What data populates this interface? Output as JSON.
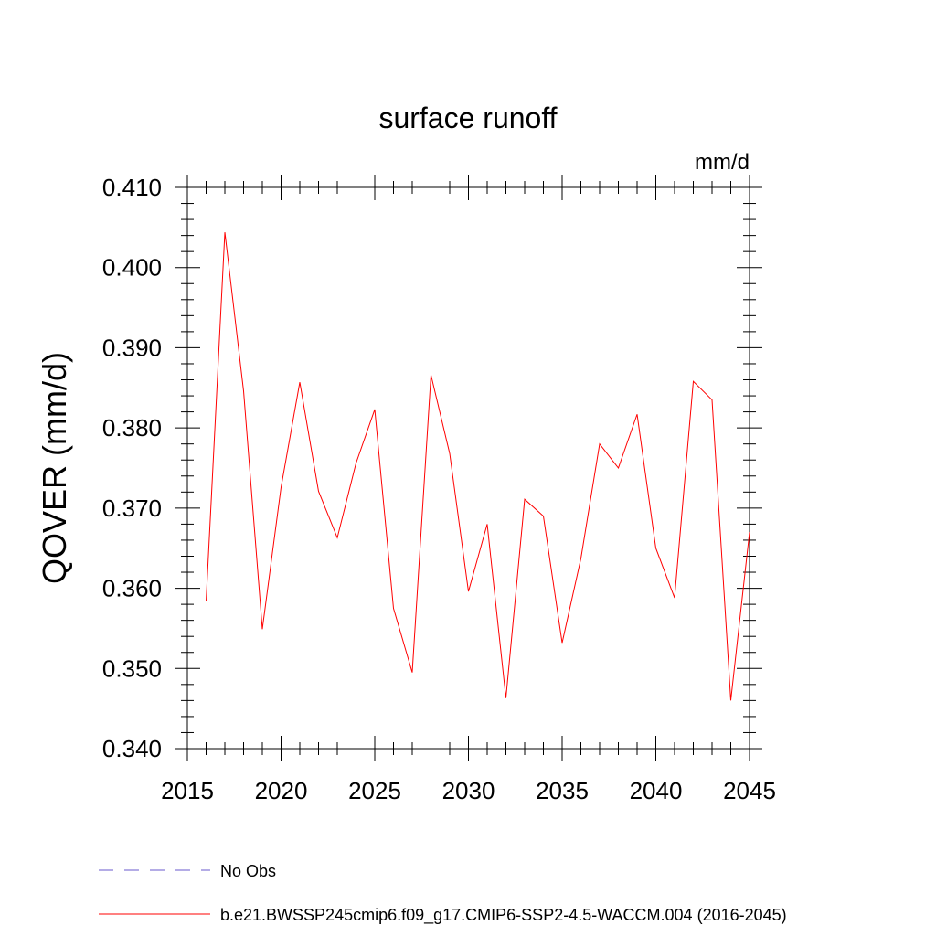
{
  "chart_data": {
    "type": "line",
    "title": "surface runoff",
    "units_label": "mm/d",
    "ylabel": "QOVER  (mm/d)",
    "xlabel": "",
    "xlim": [
      2015,
      2045
    ],
    "ylim": [
      0.34,
      0.41
    ],
    "x_ticks": [
      2015,
      2020,
      2025,
      2030,
      2035,
      2040,
      2045
    ],
    "x_tick_labels": [
      "2015",
      "2020",
      "2025",
      "2030",
      "2035",
      "2040",
      "2045"
    ],
    "y_ticks": [
      0.34,
      0.35,
      0.36,
      0.37,
      0.38,
      0.39,
      0.4,
      0.41
    ],
    "y_tick_labels": [
      "0.340",
      "0.350",
      "0.360",
      "0.370",
      "0.380",
      "0.390",
      "0.400",
      "0.410"
    ],
    "grid": false,
    "legend_position": "bottom",
    "series": [
      {
        "name": "b.e21.BWSSP245cmip6.f09_g17.CMIP6-SSP2-4.5-WACCM.004 (2016-2045)",
        "color": "#ff0000",
        "style": "solid",
        "x": [
          2016,
          2017,
          2018,
          2019,
          2020,
          2021,
          2022,
          2023,
          2024,
          2025,
          2026,
          2027,
          2028,
          2029,
          2030,
          2031,
          2032,
          2033,
          2034,
          2035,
          2036,
          2037,
          2038,
          2039,
          2040,
          2041,
          2042,
          2043,
          2044,
          2045
        ],
        "y": [
          0.3584,
          0.4044,
          0.3846,
          0.3549,
          0.3726,
          0.3857,
          0.3721,
          0.3663,
          0.3756,
          0.3823,
          0.3575,
          0.3495,
          0.3866,
          0.3768,
          0.3596,
          0.368,
          0.3463,
          0.3711,
          0.369,
          0.3532,
          0.3637,
          0.378,
          0.375,
          0.3817,
          0.365,
          0.3588,
          0.3858,
          0.3835,
          0.346,
          0.367
        ]
      }
    ],
    "legend": [
      {
        "label": "No Obs",
        "color": "#6a5acd",
        "style": "dashed"
      },
      {
        "label": "b.e21.BWSSP245cmip6.f09_g17.CMIP6-SSP2-4.5-WACCM.004 (2016-2045)",
        "color": "#ff0000",
        "style": "solid"
      }
    ]
  }
}
